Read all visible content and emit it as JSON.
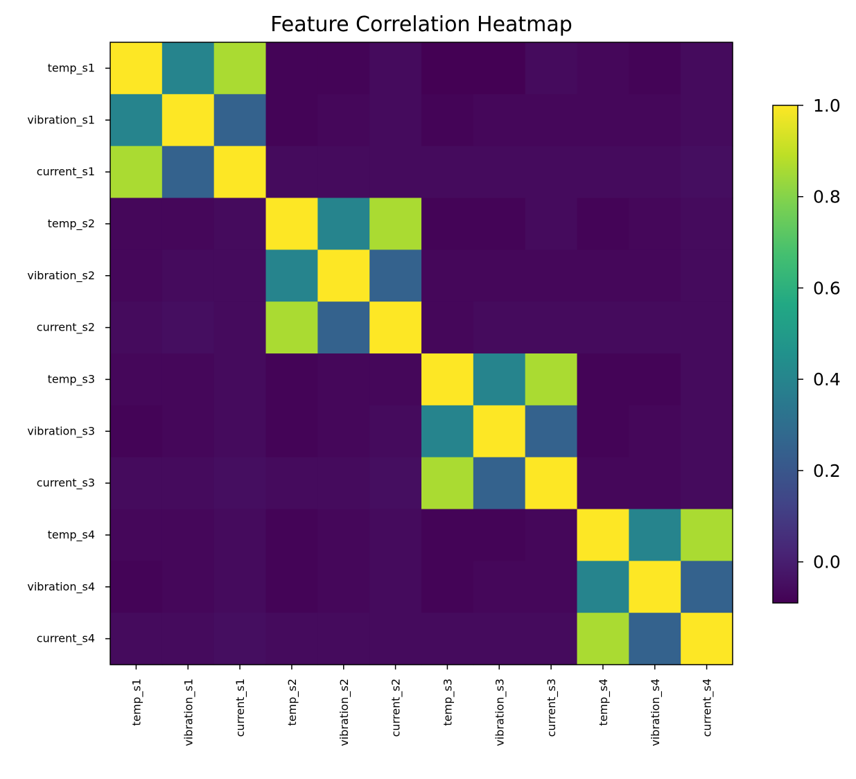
{
  "chart_data": {
    "type": "heatmap",
    "title": "Feature Correlation Heatmap",
    "xlabel": "",
    "ylabel": "",
    "labels": [
      "temp_s1",
      "vibration_s1",
      "current_s1",
      "temp_s2",
      "vibration_s2",
      "current_s2",
      "temp_s3",
      "vibration_s3",
      "current_s3",
      "temp_s4",
      "vibration_s4",
      "current_s4"
    ],
    "matrix": [
      [
        1.0,
        0.4,
        0.86,
        -0.08,
        -0.08,
        -0.06,
        -0.09,
        -0.09,
        -0.06,
        -0.07,
        -0.08,
        -0.06
      ],
      [
        0.4,
        1.0,
        0.25,
        -0.08,
        -0.07,
        -0.06,
        -0.08,
        -0.07,
        -0.07,
        -0.07,
        -0.07,
        -0.06
      ],
      [
        0.86,
        0.25,
        1.0,
        -0.06,
        -0.06,
        -0.06,
        -0.06,
        -0.06,
        -0.06,
        -0.06,
        -0.06,
        -0.05
      ],
      [
        -0.07,
        -0.07,
        -0.06,
        1.0,
        0.4,
        0.86,
        -0.08,
        -0.08,
        -0.06,
        -0.08,
        -0.07,
        -0.06
      ],
      [
        -0.07,
        -0.06,
        -0.06,
        0.4,
        1.0,
        0.25,
        -0.07,
        -0.07,
        -0.07,
        -0.07,
        -0.07,
        -0.06
      ],
      [
        -0.06,
        -0.05,
        -0.06,
        0.86,
        0.25,
        1.0,
        -0.07,
        -0.06,
        -0.06,
        -0.06,
        -0.06,
        -0.06
      ],
      [
        -0.07,
        -0.07,
        -0.06,
        -0.08,
        -0.07,
        -0.07,
        1.0,
        0.4,
        0.86,
        -0.08,
        -0.08,
        -0.06
      ],
      [
        -0.08,
        -0.07,
        -0.06,
        -0.08,
        -0.07,
        -0.06,
        0.4,
        1.0,
        0.25,
        -0.08,
        -0.07,
        -0.06
      ],
      [
        -0.06,
        -0.06,
        -0.05,
        -0.06,
        -0.06,
        -0.05,
        0.86,
        0.25,
        1.0,
        -0.07,
        -0.07,
        -0.06
      ],
      [
        -0.07,
        -0.07,
        -0.06,
        -0.08,
        -0.07,
        -0.06,
        -0.08,
        -0.08,
        -0.07,
        1.0,
        0.4,
        0.86
      ],
      [
        -0.08,
        -0.07,
        -0.06,
        -0.08,
        -0.07,
        -0.06,
        -0.08,
        -0.07,
        -0.07,
        0.4,
        1.0,
        0.25
      ],
      [
        -0.06,
        -0.06,
        -0.05,
        -0.06,
        -0.06,
        -0.06,
        -0.06,
        -0.06,
        -0.06,
        0.86,
        0.25,
        1.0
      ]
    ],
    "colormap": "viridis",
    "vmin": -0.09,
    "vmax": 1.0,
    "colorbar_ticks": [
      "0.0",
      "0.2",
      "0.4",
      "0.6",
      "0.8",
      "1.0"
    ],
    "colorbar_tick_values": [
      0.0,
      0.2,
      0.4,
      0.6,
      0.8,
      1.0
    ],
    "grid": false,
    "colorbar_placement": "right"
  }
}
